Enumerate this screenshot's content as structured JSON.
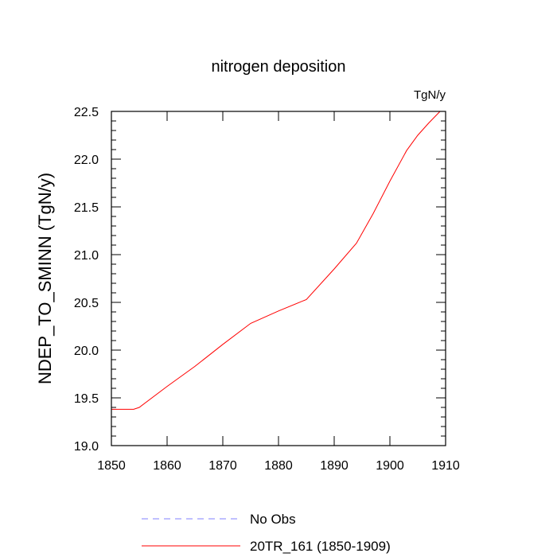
{
  "chart_data": {
    "type": "line",
    "title": "nitrogen deposition",
    "units_label": "TgN/y",
    "ylabel": "NDEP_TO_SMINN  (TgN/y)",
    "xlabel": "",
    "xlim": [
      1850,
      1910
    ],
    "ylim": [
      19.0,
      22.5
    ],
    "x_ticks": [
      1850,
      1860,
      1870,
      1880,
      1890,
      1900,
      1910
    ],
    "x_tick_labels": [
      "1850",
      "1860",
      "1870",
      "1880",
      "1890",
      "1900",
      "1910"
    ],
    "y_ticks": [
      19.0,
      19.5,
      20.0,
      20.5,
      21.0,
      21.5,
      22.0,
      22.5
    ],
    "y_tick_labels": [
      "19.0",
      "19.5",
      "20.0",
      "20.5",
      "21.0",
      "21.5",
      "22.0",
      "22.5"
    ],
    "grid": false,
    "legend_position": "bottom",
    "series": [
      {
        "name": "No Obs",
        "color": "#8080ff",
        "dashed": true,
        "x": [],
        "y": []
      },
      {
        "name": "20TR_161 (1850-1909)",
        "color": "#ff0000",
        "dashed": false,
        "x": [
          1850,
          1852,
          1854,
          1855,
          1860,
          1865,
          1870,
          1875,
          1880,
          1885,
          1890,
          1894,
          1897,
          1900,
          1903,
          1905,
          1907,
          1909
        ],
        "y": [
          19.38,
          19.38,
          19.38,
          19.4,
          19.62,
          19.83,
          20.06,
          20.28,
          20.41,
          20.53,
          20.85,
          21.12,
          21.43,
          21.77,
          22.09,
          22.25,
          22.38,
          22.5
        ]
      }
    ]
  }
}
